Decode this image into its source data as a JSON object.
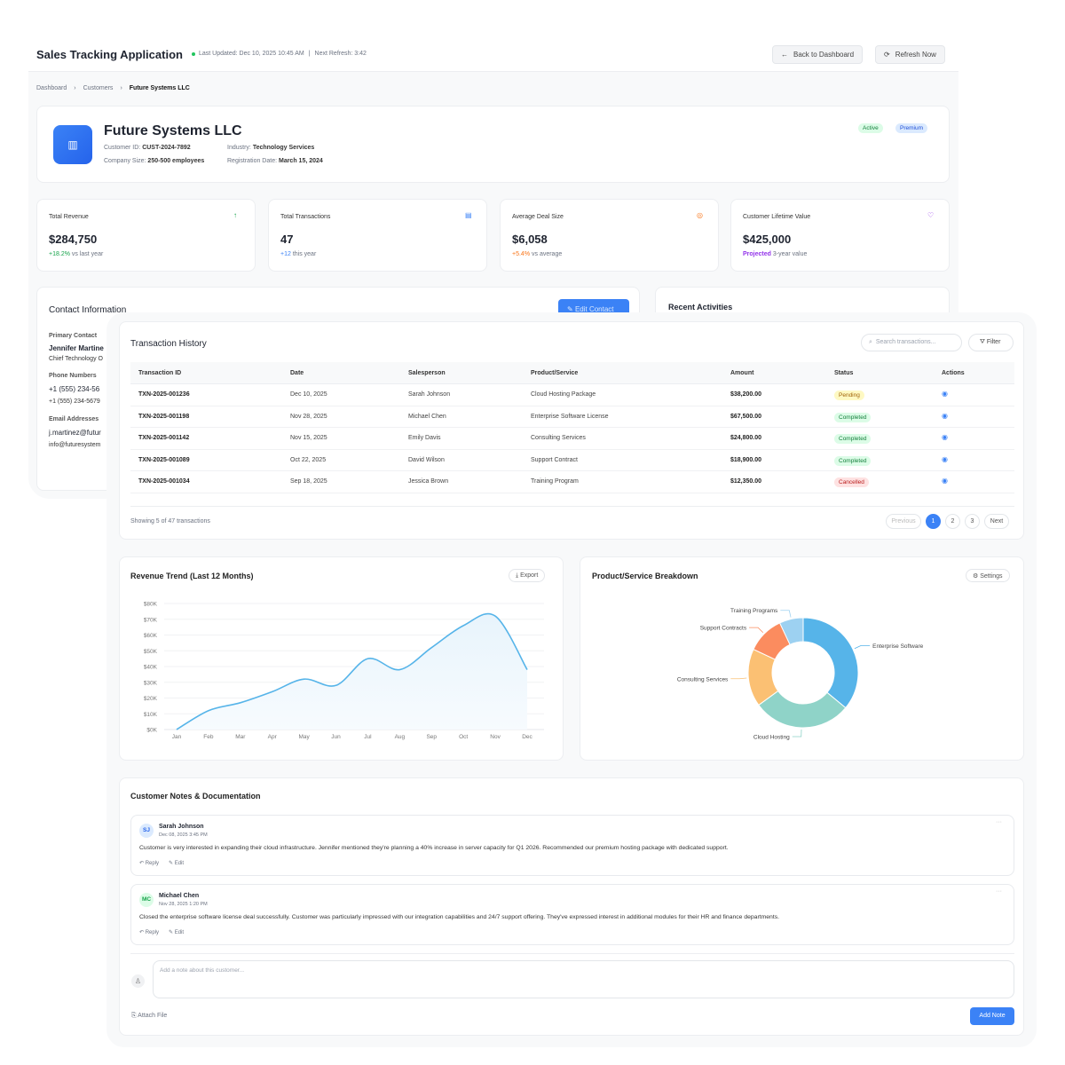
{
  "header": {
    "title": "Sales Tracking Application",
    "last_updated": "Last Updated: Dec 10, 2025 10:45 AM",
    "separator": "|",
    "next_refresh": "Next Refresh: 3:42",
    "back_label": "Back to Dashboard",
    "refresh_label": "Refresh Now",
    "status_color": "#22c55e"
  },
  "breadcrumb": [
    "Dashboard",
    "Customers",
    "Future Systems LLC"
  ],
  "customer": {
    "name": "Future Systems LLC",
    "id_label": "Customer ID:",
    "id": "CUST-2024-7892",
    "industry_label": "Industry:",
    "industry": "Technology Services",
    "size_label": "Company Size:",
    "size": "250-500 employees",
    "reg_label": "Registration Date:",
    "reg": "March 15, 2024",
    "badges": [
      "Active",
      "Premium"
    ]
  },
  "stats": [
    {
      "label": "Total Revenue",
      "value": "$284,750",
      "delta": "+18.2%",
      "note": "vs last year",
      "icon": "arrow-up-icon",
      "color": "#16a34a"
    },
    {
      "label": "Total Transactions",
      "value": "47",
      "delta": "+12",
      "note": "this year",
      "icon": "document-icon",
      "color": "#3b82f6"
    },
    {
      "label": "Average Deal Size",
      "value": "$6,058",
      "delta": "+5.4%",
      "note": "vs average",
      "icon": "coin-icon",
      "color": "#f97316"
    },
    {
      "label": "Customer Lifetime Value",
      "value": "$425,000",
      "delta": "Projected",
      "note": "3-year value",
      "icon": "trophy-icon",
      "color": "#9333ea"
    }
  ],
  "contact": {
    "title": "Contact Information",
    "edit_label": "Edit Contact",
    "primary_label": "Primary Contact",
    "name": "Jennifer Martine",
    "role": "Chief Technology O",
    "phones_label": "Phone Numbers",
    "phone1": "+1 (555) 234-56",
    "phone2": "+1 (555) 234-5679",
    "emails_label": "Email Addresses",
    "email1": "j.martinez@futur",
    "email2": "info@futuresystem"
  },
  "activities": {
    "title": "Recent Activities"
  },
  "transactions": {
    "title": "Transaction History",
    "search_placeholder": "Search transactions...",
    "filter_label": "Filter",
    "columns": [
      "Transaction ID",
      "Date",
      "Salesperson",
      "Product/Service",
      "Amount",
      "Status",
      "Actions"
    ],
    "rows": [
      [
        "TXN-2025-001236",
        "Dec 10, 2025",
        "Sarah Johnson",
        "Cloud Hosting Package",
        "$38,200.00",
        "Pending"
      ],
      [
        "TXN-2025-001198",
        "Nov 28, 2025",
        "Michael Chen",
        "Enterprise Software License",
        "$67,500.00",
        "Completed"
      ],
      [
        "TXN-2025-001142",
        "Nov 15, 2025",
        "Emily Davis",
        "Consulting Services",
        "$24,800.00",
        "Completed"
      ],
      [
        "TXN-2025-001089",
        "Oct 22, 2025",
        "David Wilson",
        "Support Contract",
        "$18,900.00",
        "Completed"
      ],
      [
        "TXN-2025-001034",
        "Sep 18, 2025",
        "Jessica Brown",
        "Training Program",
        "$12,350.00",
        "Cancelled"
      ]
    ],
    "showing": "Showing 5 of 47 transactions",
    "prev": "Previous",
    "pages": [
      "1",
      "2",
      "3"
    ],
    "next": "Next"
  },
  "revenue": {
    "title": "Revenue Trend (Last 12 Months)",
    "export_label": "Export"
  },
  "breakdown": {
    "title": "Product/Service Breakdown",
    "settings_label": "Settings"
  },
  "chart_data": [
    {
      "type": "area",
      "categories": [
        "Jan",
        "Feb",
        "Mar",
        "Apr",
        "May",
        "Jun",
        "Jul",
        "Aug",
        "Sep",
        "Oct",
        "Nov",
        "Dec"
      ],
      "values": [
        0,
        12000,
        17000,
        24000,
        32000,
        28000,
        45000,
        38000,
        52000,
        66000,
        72000,
        38000
      ],
      "ylim": [
        0,
        80000
      ],
      "yticks": [
        "$0K",
        "$10K",
        "$20K",
        "$30K",
        "$40K",
        "$50K",
        "$60K",
        "$70K",
        "$80K"
      ],
      "grid": true,
      "color": "#56b4e9"
    },
    {
      "type": "pie",
      "donut": true,
      "labels": [
        "Enterprise Software",
        "Cloud Hosting",
        "Consulting Services",
        "Support Contracts",
        "Training Programs"
      ],
      "values": [
        36,
        29,
        17,
        11,
        7
      ],
      "colors": [
        "#56b4e9",
        "#8fd3c8",
        "#fbc073",
        "#fb8c5f",
        "#9dd1f1"
      ]
    }
  ],
  "notes": {
    "title": "Customer Notes & Documentation",
    "items": [
      {
        "initials": "SJ",
        "author": "Sarah Johnson",
        "date": "Dec 08, 2025 3:45 PM",
        "text": "Customer is very interested in expanding their cloud infrastructure. Jennifer mentioned they're planning a 40% increase in server capacity for Q1 2026. Recommended our premium hosting package with dedicated support.",
        "avatar_bg": "#dbeafe",
        "avatar_fg": "#2563eb"
      },
      {
        "initials": "MC",
        "author": "Michael Chen",
        "date": "Nov 28, 2025 1:20 PM",
        "text": "Closed the enterprise software license deal successfully. Customer was particularly impressed with our integration capabilities and 24/7 support offering. They've expressed interest in additional modules for their HR and finance departments.",
        "avatar_bg": "#dcfce7",
        "avatar_fg": "#16a34a"
      }
    ],
    "reply": "Reply",
    "edit": "Edit",
    "more": "···",
    "placeholder": "Add a note about this customer...",
    "attach": "Attach File",
    "add": "Add Note"
  }
}
